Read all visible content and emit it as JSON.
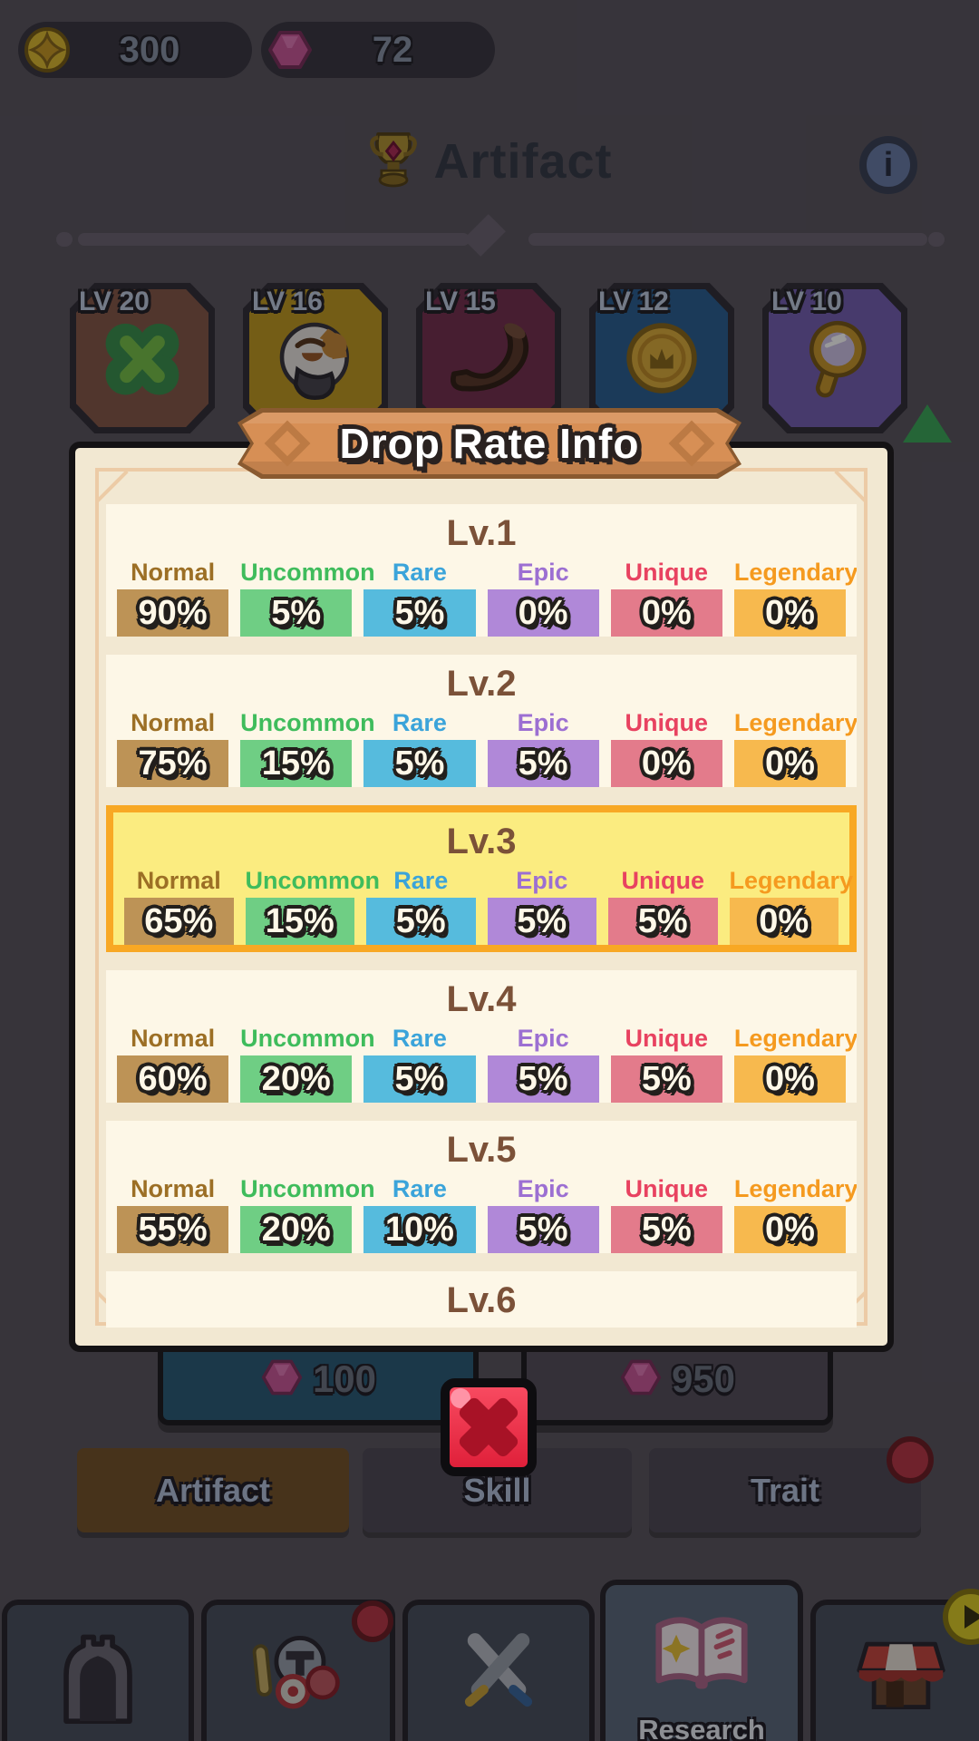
{
  "currency_bar": {
    "coins": "300",
    "gems": "72",
    "coin_icon": "coin-icon",
    "gem_icon": "gem-icon"
  },
  "header": {
    "title": "Artifact",
    "title_icon": "trophy-icon",
    "info_icon": "info-icon",
    "info_glyph": "i"
  },
  "artifact_cards": [
    {
      "level": "LV 20",
      "icon": "clover-icon",
      "color": "#885a4c"
    },
    {
      "level": "LV 16",
      "icon": "bird-icon",
      "color": "#c29b26"
    },
    {
      "level": "LV 15",
      "icon": "horn-icon",
      "color": "#773252"
    },
    {
      "level": "LV 12",
      "icon": "coin-icon",
      "color": "#2d6194"
    },
    {
      "level": "LV 10",
      "icon": "mirror-icon",
      "color": "#7761b5"
    }
  ],
  "modal": {
    "title": "Drop Rate Info",
    "close_icon": "x-icon",
    "highlight": {
      "bg": "#fbec80",
      "border": "#f8a824"
    },
    "rarities": [
      {
        "name": "Normal",
        "label_color": "#9c6f25",
        "badge_color": "#bd9356"
      },
      {
        "name": "Uncommon",
        "label_color": "#3fbc5c",
        "badge_color": "#6fce84"
      },
      {
        "name": "Rare",
        "label_color": "#3ba4da",
        "badge_color": "#56bbdd"
      },
      {
        "name": "Epic",
        "label_color": "#9c6fd2",
        "badge_color": "#b088d8"
      },
      {
        "name": "Unique",
        "label_color": "#e84260",
        "badge_color": "#e37b8b"
      },
      {
        "name": "Legendary",
        "label_color": "#f59a1f",
        "badge_color": "#f7b94e"
      }
    ],
    "levels": [
      {
        "title": "Lv.1",
        "highlighted": false,
        "values": [
          "90%",
          "5%",
          "5%",
          "0%",
          "0%",
          "0%"
        ]
      },
      {
        "title": "Lv.2",
        "highlighted": false,
        "values": [
          "75%",
          "15%",
          "5%",
          "5%",
          "0%",
          "0%"
        ]
      },
      {
        "title": "Lv.3",
        "highlighted": true,
        "values": [
          "65%",
          "15%",
          "5%",
          "5%",
          "5%",
          "0%"
        ]
      },
      {
        "title": "Lv.4",
        "highlighted": false,
        "values": [
          "60%",
          "20%",
          "5%",
          "5%",
          "5%",
          "0%"
        ]
      },
      {
        "title": "Lv.5",
        "highlighted": false,
        "values": [
          "55%",
          "20%",
          "10%",
          "5%",
          "5%",
          "0%"
        ]
      },
      {
        "title": "Lv.6",
        "highlighted": false,
        "values": null
      }
    ]
  },
  "upgrade_buttons": [
    {
      "cost": "100",
      "icon": "gem-icon",
      "color": "#2d5e7b"
    },
    {
      "cost": "950",
      "icon": "gem-icon",
      "color": "#57515e"
    }
  ],
  "tabs": [
    {
      "label": "Artifact",
      "selected": true,
      "badge": false
    },
    {
      "label": "Skill",
      "selected": false,
      "badge": false
    },
    {
      "label": "Trait",
      "selected": false,
      "badge": true
    }
  ],
  "bottom_nav": [
    {
      "icon": "castle-icon",
      "label": "",
      "selected": false,
      "badge": false,
      "arrow": false
    },
    {
      "icon": "hero-icon",
      "label": "",
      "selected": false,
      "badge": true,
      "arrow": false
    },
    {
      "icon": "swords-icon",
      "label": "",
      "selected": false,
      "badge": false,
      "arrow": false
    },
    {
      "icon": "book-icon",
      "label": "Research",
      "selected": true,
      "badge": false,
      "arrow": false
    },
    {
      "icon": "shop-icon",
      "label": "",
      "selected": false,
      "badge": false,
      "arrow": true
    }
  ],
  "scroll_indicator": {
    "icon": "up-arrow-icon",
    "color": "#3fa85c"
  }
}
